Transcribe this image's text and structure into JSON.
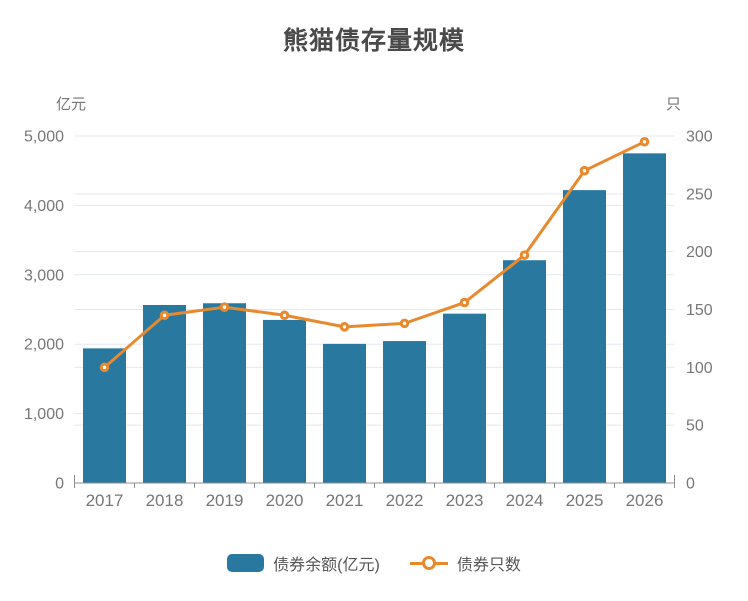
{
  "title": "熊猫债存量规模",
  "colors": {
    "bar": "#2878A0",
    "line": "#E8892E",
    "grid": "#E4E8F2",
    "axis": "#8E8E8E",
    "tick_label": "#777777",
    "title_color": "#4a4a4a",
    "legend_text": "#565656"
  },
  "left_axis": {
    "unit": "亿元",
    "ticks": [
      "0",
      "1,000",
      "2,000",
      "3,000",
      "4,000",
      "5,000"
    ],
    "min": 0,
    "max": 5000
  },
  "right_axis": {
    "unit": "只",
    "ticks": [
      "0",
      "50",
      "100",
      "150",
      "200",
      "250",
      "300"
    ],
    "min": 0,
    "max": 300
  },
  "legend": [
    {
      "label": "债券余额(亿元)",
      "type": "bar"
    },
    {
      "label": "债券只数",
      "type": "line"
    }
  ],
  "chart_data": {
    "type": "bar+line",
    "title": "熊猫债存量规模",
    "categories": [
      "2017",
      "2018",
      "2019",
      "2020",
      "2021",
      "2022",
      "2023",
      "2024",
      "2025",
      "2026"
    ],
    "series": [
      {
        "name": "债券余额(亿元)",
        "type": "bar",
        "axis": "left",
        "values": [
          1940,
          2565,
          2590,
          2350,
          2005,
          2045,
          2440,
          3210,
          4220,
          4750
        ]
      },
      {
        "name": "债券只数",
        "type": "line",
        "axis": "right",
        "values": [
          100,
          145,
          152,
          145,
          135,
          138,
          156,
          197,
          270,
          295
        ]
      }
    ],
    "ylim_left": [
      0,
      5000
    ],
    "ylim_right": [
      0,
      300
    ],
    "grid": true,
    "legend_position": "bottom"
  }
}
